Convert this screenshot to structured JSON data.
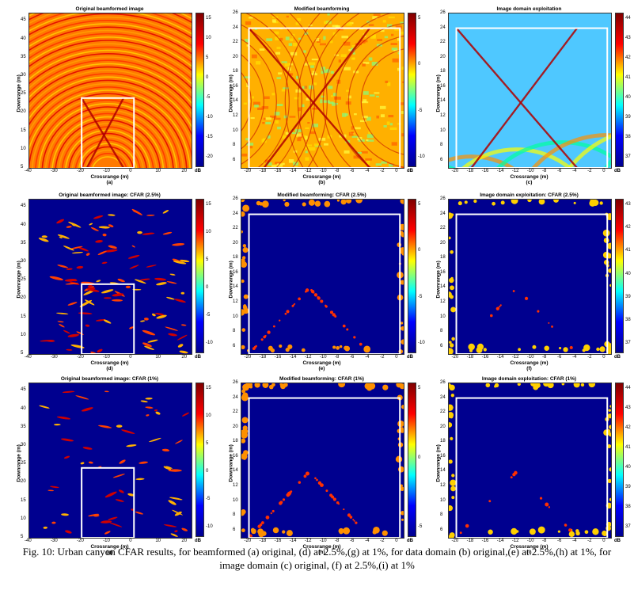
{
  "figure": {
    "caption": "Fig. 10: Urban canyon CFAR results, for beamformed (a) original, (d) at 2.5%,(g) at 1%, for data domain (b) original,(e) at 2.5%,(h) at 1%, for image domain (c) original, (f) at 2.5%,(i) at 1%"
  },
  "colors": {
    "background_low": "#00008f",
    "mid": "#00ffff",
    "high": "#ff0000",
    "box": "#ffffff"
  },
  "chart_data": [
    {
      "id": "a",
      "type": "heatmap",
      "title": "Original beamformed image",
      "xlabel": "Crossrange (m)",
      "ylabel": "Downrange (m)",
      "sublabel": "(a)",
      "xticks": [
        "-40",
        "-30",
        "-20",
        "-10",
        "0",
        "10",
        "20"
      ],
      "yticks": [
        "5",
        "10",
        "15",
        "20",
        "25",
        "30",
        "35",
        "40",
        "45"
      ],
      "xlim": [
        -40,
        22
      ],
      "ylim": [
        5,
        47
      ],
      "cbar_ticks": [
        "15",
        "10",
        "5",
        "0",
        "-5",
        "-10",
        "-15",
        "-20"
      ],
      "cbar_unit": "dB",
      "box": {
        "x0": -20,
        "x1": 0,
        "y0": 5,
        "y1": 24
      }
    },
    {
      "id": "b",
      "type": "heatmap",
      "title": "Modified beamforming",
      "xlabel": "Crossrange (m)",
      "ylabel": "Downrange (m)",
      "sublabel": "(b)",
      "xticks": [
        "-20",
        "-18",
        "-16",
        "-14",
        "-12",
        "-10",
        "-8",
        "-6",
        "-4",
        "-2",
        "0"
      ],
      "yticks": [
        "6",
        "8",
        "10",
        "12",
        "14",
        "16",
        "18",
        "20",
        "22",
        "24",
        "26"
      ],
      "xlim": [
        -21,
        0.5
      ],
      "ylim": [
        5,
        26
      ],
      "cbar_ticks": [
        "5",
        "0",
        "-5",
        "-10"
      ],
      "cbar_unit": "dB",
      "box": {
        "x0": -20,
        "x1": 0,
        "y0": 5,
        "y1": 24
      }
    },
    {
      "id": "c",
      "type": "heatmap",
      "title": "Image domain exploitation",
      "xlabel": "Crossrange (m)",
      "ylabel": "Downrange (m)",
      "sublabel": "(c)",
      "xticks": [
        "-20",
        "-18",
        "-16",
        "-14",
        "-12",
        "-10",
        "-8",
        "-6",
        "-4",
        "-2",
        "0"
      ],
      "yticks": [
        "6",
        "8",
        "10",
        "12",
        "14",
        "16",
        "18",
        "20",
        "22",
        "24",
        "26"
      ],
      "xlim": [
        -21,
        0.5
      ],
      "ylim": [
        5,
        26
      ],
      "cbar_ticks": [
        "44",
        "43",
        "42",
        "41",
        "40",
        "39",
        "38",
        "37"
      ],
      "cbar_unit": "dB",
      "box": {
        "x0": -20,
        "x1": 0,
        "y0": 5,
        "y1": 24
      }
    },
    {
      "id": "d",
      "type": "heatmap",
      "title": "Original beamformed image: CFAR (2.5%)",
      "xlabel": "Crossrange (m)",
      "ylabel": "Downrange (m)",
      "sublabel": "(d)",
      "xticks": [
        "-40",
        "-30",
        "-20",
        "-10",
        "0",
        "10",
        "20"
      ],
      "yticks": [
        "5",
        "10",
        "15",
        "20",
        "25",
        "30",
        "35",
        "40",
        "45"
      ],
      "xlim": [
        -40,
        22
      ],
      "ylim": [
        5,
        47
      ],
      "cbar_ticks": [
        "15",
        "10",
        "5",
        "0",
        "-5",
        "-10"
      ],
      "cbar_unit": "dB",
      "box": {
        "x0": -20,
        "x1": 0,
        "y0": 5,
        "y1": 24
      }
    },
    {
      "id": "e",
      "type": "heatmap",
      "title": "Modified beamforming: CFAR (2.5%)",
      "xlabel": "Crossrange (m)",
      "ylabel": "Downrange (m)",
      "sublabel": "(e)",
      "xticks": [
        "-20",
        "-18",
        "-16",
        "-14",
        "-12",
        "-10",
        "-8",
        "-6",
        "-4",
        "-2",
        "0"
      ],
      "yticks": [
        "6",
        "8",
        "10",
        "12",
        "14",
        "16",
        "18",
        "20",
        "22",
        "24",
        "26"
      ],
      "xlim": [
        -21,
        0.5
      ],
      "ylim": [
        5,
        26
      ],
      "cbar_ticks": [
        "5",
        "0",
        "-5",
        "-10"
      ],
      "cbar_unit": "dB",
      "box": {
        "x0": -20,
        "x1": 0,
        "y0": 5,
        "y1": 24
      }
    },
    {
      "id": "f",
      "type": "heatmap",
      "title": "Image domain exploitation: CFAR (2.5%)",
      "xlabel": "Crossrange (m)",
      "ylabel": "Downrange (m)",
      "sublabel": "(f)",
      "xticks": [
        "-20",
        "-18",
        "-16",
        "-14",
        "-12",
        "-10",
        "-8",
        "-6",
        "-4",
        "-2",
        "0"
      ],
      "yticks": [
        "6",
        "8",
        "10",
        "12",
        "14",
        "16",
        "18",
        "20",
        "22",
        "24",
        "26"
      ],
      "xlim": [
        -21,
        0.5
      ],
      "ylim": [
        5,
        26
      ],
      "cbar_ticks": [
        "43",
        "42",
        "41",
        "40",
        "39",
        "38",
        "37"
      ],
      "cbar_unit": "dB",
      "box": {
        "x0": -20,
        "x1": 0,
        "y0": 5,
        "y1": 24
      }
    },
    {
      "id": "g",
      "type": "heatmap",
      "title": "Original beamformed image: CFAR (1%)",
      "xlabel": "Crossrange (m)",
      "ylabel": "Downrange (m)",
      "sublabel": "(g)",
      "xticks": [
        "-40",
        "-30",
        "-20",
        "-10",
        "0",
        "10",
        "20"
      ],
      "yticks": [
        "5",
        "10",
        "15",
        "20",
        "25",
        "30",
        "35",
        "40",
        "45"
      ],
      "xlim": [
        -40,
        22
      ],
      "ylim": [
        5,
        47
      ],
      "cbar_ticks": [
        "15",
        "10",
        "5",
        "0",
        "-5",
        "-10"
      ],
      "cbar_unit": "dB",
      "box": {
        "x0": -20,
        "x1": 0,
        "y0": 5,
        "y1": 24
      }
    },
    {
      "id": "h",
      "type": "heatmap",
      "title": "Modified beamforming: CFAR (1%)",
      "xlabel": "Crossrange (m)",
      "ylabel": "Downrange (m)",
      "sublabel": "(h)",
      "xticks": [
        "-20",
        "-18",
        "-16",
        "-14",
        "-12",
        "-10",
        "-8",
        "-6",
        "-4",
        "-2",
        "0"
      ],
      "yticks": [
        "6",
        "8",
        "10",
        "12",
        "14",
        "16",
        "18",
        "20",
        "22",
        "24",
        "26"
      ],
      "xlim": [
        -21,
        0.5
      ],
      "ylim": [
        5,
        26
      ],
      "cbar_ticks": [
        "5",
        "0",
        "-5"
      ],
      "cbar_unit": "dB",
      "box": {
        "x0": -20,
        "x1": 0,
        "y0": 5,
        "y1": 24
      }
    },
    {
      "id": "i",
      "type": "heatmap",
      "title": "Image domain exploitation: CFAR (1%)",
      "xlabel": "Crossrange (m)",
      "ylabel": "Downrange (m)",
      "sublabel": "(i)",
      "xticks": [
        "-20",
        "-18",
        "-16",
        "-14",
        "-12",
        "-10",
        "-8",
        "-6",
        "-4",
        "-2",
        "0"
      ],
      "yticks": [
        "6",
        "8",
        "10",
        "12",
        "14",
        "16",
        "18",
        "20",
        "22",
        "24",
        "26"
      ],
      "xlim": [
        -21,
        0.5
      ],
      "ylim": [
        5,
        26
      ],
      "cbar_ticks": [
        "44",
        "43",
        "42",
        "41",
        "40",
        "39",
        "38",
        "37"
      ],
      "cbar_unit": "dB",
      "box": {
        "x0": -20,
        "x1": 0,
        "y0": 5,
        "y1": 24
      }
    }
  ]
}
